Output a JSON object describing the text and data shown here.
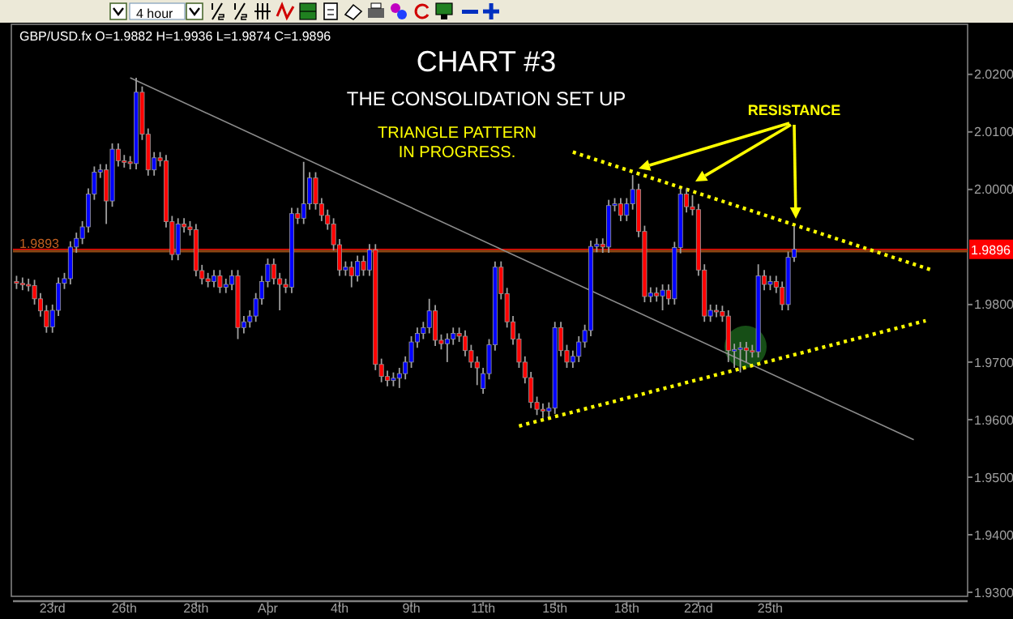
{
  "chart_data": {
    "type": "candlestick",
    "title": "CHART #3",
    "subtitle": "THE CONSOLIDATION SET UP",
    "annotations": [
      "GBP/USD.fx O=1.9882 H=1.9936 L=1.9874 C=1.9896",
      "TRIANGLE PATTERN\nIN PROGRESS.",
      "RESISTANCE",
      "4 hour"
    ],
    "categories": [
      null,
      null,
      null,
      null,
      null,
      null,
      "23rd",
      null,
      null,
      null,
      null,
      null,
      null,
      null,
      null,
      null,
      null,
      null,
      "26th",
      null,
      null,
      null,
      null,
      null,
      null,
      null,
      null,
      null,
      null,
      null,
      "28th",
      null,
      null,
      null,
      null,
      null,
      null,
      null,
      null,
      null,
      null,
      null,
      "Apr",
      null,
      null,
      null,
      null,
      null,
      null,
      null,
      null,
      null,
      null,
      null,
      "4th",
      null,
      null,
      null,
      null,
      null,
      null,
      null,
      null,
      null,
      null,
      null,
      "9th",
      null,
      null,
      null,
      null,
      null,
      null,
      null,
      null,
      null,
      null,
      null,
      "11th",
      null,
      null,
      null,
      null,
      null,
      null,
      null,
      null,
      null,
      null,
      null,
      "15th",
      null,
      null,
      null,
      null,
      null,
      null,
      null,
      null,
      null,
      null,
      null,
      "18th",
      null,
      null,
      null,
      null,
      null,
      null,
      null,
      null,
      null,
      null,
      null,
      "22nd",
      null,
      null,
      null,
      null,
      null,
      null,
      null,
      null,
      null,
      null,
      null,
      "25th",
      null,
      null,
      null,
      null,
      null,
      null,
      null,
      null,
      null,
      null,
      null,
      null,
      null,
      null,
      null,
      null,
      null,
      null,
      null,
      null,
      null,
      null,
      null,
      null,
      null,
      null,
      null,
      null,
      null,
      null,
      null,
      null,
      null
    ],
    "ohlc": [
      [
        1.984,
        1.985,
        1.9827,
        1.9837
      ],
      [
        1.9837,
        1.9847,
        1.9825,
        1.9835
      ],
      [
        1.9835,
        1.9845,
        1.9823,
        1.9833
      ],
      [
        1.9833,
        1.9843,
        1.98,
        1.981
      ],
      [
        1.981,
        1.982,
        1.9779,
        1.9789
      ],
      [
        1.9789,
        1.9799,
        1.9751,
        1.9761
      ],
      [
        1.9761,
        1.98,
        1.9751,
        1.979
      ],
      [
        1.979,
        1.9847,
        1.978,
        1.9837
      ],
      [
        1.9837,
        1.9855,
        1.9827,
        1.9845
      ],
      [
        1.9845,
        1.991,
        1.9835,
        1.99
      ],
      [
        1.99,
        1.9925,
        1.989,
        1.9915
      ],
      [
        1.9915,
        1.9945,
        1.9905,
        1.9935
      ],
      [
        1.9935,
        2.0002,
        1.9925,
        1.9992
      ],
      [
        1.9992,
        2.004,
        1.9982,
        2.003
      ],
      [
        2.003,
        2.0044,
        2.002,
        2.0034
      ],
      [
        2.0034,
        2.0044,
        1.994,
        1.998
      ],
      [
        1.998,
        2.008,
        1.997,
        2.007
      ],
      [
        2.007,
        2.008,
        2.004,
        2.005
      ],
      [
        2.005,
        2.006,
        2.0038,
        2.0048
      ],
      [
        2.0048,
        2.0058,
        2.0035,
        2.0045
      ],
      [
        2.0045,
        2.0194,
        2.0035,
        2.0169
      ],
      [
        2.0169,
        2.0179,
        2.0086,
        2.0096
      ],
      [
        2.0096,
        2.0106,
        2.0024,
        2.0034
      ],
      [
        2.0034,
        2.0065,
        2.0024,
        2.0055
      ],
      [
        2.0055,
        2.0065,
        2.004,
        2.005
      ],
      [
        2.005,
        2.006,
        1.9934,
        1.9944
      ],
      [
        1.9944,
        1.9954,
        1.9877,
        1.9887
      ],
      [
        1.9887,
        1.995,
        1.9877,
        1.994
      ],
      [
        1.994,
        1.995,
        1.9925,
        1.9935
      ],
      [
        1.9935,
        1.9945,
        1.992,
        1.993
      ],
      [
        1.993,
        1.994,
        1.9849,
        1.9859
      ],
      [
        1.9859,
        1.9869,
        1.9835,
        1.9845
      ],
      [
        1.9845,
        1.9855,
        1.983,
        1.984
      ],
      [
        1.984,
        1.986,
        1.983,
        1.985
      ],
      [
        1.985,
        1.986,
        1.982,
        1.983
      ],
      [
        1.983,
        1.9845,
        1.982,
        1.9835
      ],
      [
        1.9835,
        1.986,
        1.9825,
        1.985
      ],
      [
        1.985,
        1.986,
        1.974,
        1.976
      ],
      [
        1.976,
        1.978,
        1.975,
        1.977
      ],
      [
        1.977,
        1.979,
        1.976,
        1.978
      ],
      [
        1.978,
        1.982,
        1.977,
        1.981
      ],
      [
        1.981,
        1.985,
        1.98,
        1.984
      ],
      [
        1.984,
        1.988,
        1.983,
        1.987
      ],
      [
        1.987,
        1.988,
        1.9835,
        1.9845
      ],
      [
        1.9845,
        1.9855,
        1.979,
        1.9835
      ],
      [
        1.9835,
        1.9845,
        1.982,
        1.983
      ],
      [
        1.983,
        1.9968,
        1.982,
        1.9958
      ],
      [
        1.9958,
        1.9968,
        1.994,
        1.995
      ],
      [
        1.995,
        2.0048,
        1.994,
        1.9975
      ],
      [
        1.9975,
        2.003,
        1.9965,
        2.002
      ],
      [
        2.002,
        2.003,
        1.9965,
        1.9975
      ],
      [
        1.9975,
        1.9985,
        1.9945,
        1.9955
      ],
      [
        1.9955,
        1.9965,
        1.993,
        1.994
      ],
      [
        1.994,
        1.995,
        1.9894,
        1.9904
      ],
      [
        1.9904,
        1.9914,
        1.985,
        1.986
      ],
      [
        1.986,
        1.9875,
        1.985,
        1.9865
      ],
      [
        1.9865,
        1.9875,
        1.983,
        1.985
      ],
      [
        1.985,
        1.9885,
        1.984,
        1.9875
      ],
      [
        1.9875,
        1.9885,
        1.985,
        1.986
      ],
      [
        1.986,
        1.9905,
        1.985,
        1.9895
      ],
      [
        1.9895,
        1.9905,
        1.9686,
        1.9696
      ],
      [
        1.9696,
        1.9706,
        1.9665,
        1.9675
      ],
      [
        1.9675,
        1.9685,
        1.9658,
        1.9668
      ],
      [
        1.9668,
        1.9682,
        1.9658,
        1.9672
      ],
      [
        1.9672,
        1.969,
        1.9655,
        1.968
      ],
      [
        1.968,
        1.971,
        1.967,
        1.97
      ],
      [
        1.97,
        1.9745,
        1.969,
        1.9735
      ],
      [
        1.9735,
        1.976,
        1.9725,
        1.975
      ],
      [
        1.975,
        1.977,
        1.974,
        1.976
      ],
      [
        1.976,
        1.981,
        1.975,
        1.9789
      ],
      [
        1.9789,
        1.9799,
        1.9728,
        1.9738
      ],
      [
        1.9738,
        1.9748,
        1.9722,
        1.9732
      ],
      [
        1.9732,
        1.975,
        1.97,
        1.974
      ],
      [
        1.974,
        1.976,
        1.973,
        1.975
      ],
      [
        1.975,
        1.976,
        1.9735,
        1.9745
      ],
      [
        1.9745,
        1.9755,
        1.971,
        1.972
      ],
      [
        1.972,
        1.973,
        1.969,
        1.97
      ],
      [
        1.97,
        1.971,
        1.966,
        1.969
      ],
      [
        1.9654,
        1.969,
        1.9645,
        1.968
      ],
      [
        1.968,
        1.974,
        1.967,
        1.973
      ],
      [
        1.973,
        1.9875,
        1.972,
        1.9865
      ],
      [
        1.9865,
        1.9875,
        1.9809,
        1.9819
      ],
      [
        1.9819,
        1.9829,
        1.976,
        1.977
      ],
      [
        1.977,
        1.978,
        1.973,
        1.974
      ],
      [
        1.974,
        1.975,
        1.969,
        1.97
      ],
      [
        1.97,
        1.971,
        1.9663,
        1.9673
      ],
      [
        1.9673,
        1.9683,
        1.962,
        1.963
      ],
      [
        1.963,
        1.964,
        1.9608,
        1.9618
      ],
      [
        1.9618,
        1.9628,
        1.9603,
        1.9615
      ],
      [
        1.9615,
        1.963,
        1.9605,
        1.962
      ],
      [
        1.962,
        1.977,
        1.961,
        1.976
      ],
      [
        1.976,
        1.977,
        1.971,
        1.972
      ],
      [
        1.972,
        1.973,
        1.969,
        1.97
      ],
      [
        1.97,
        1.972,
        1.969,
        1.971
      ],
      [
        1.971,
        1.9745,
        1.97,
        1.9735
      ],
      [
        1.9735,
        1.9765,
        1.9725,
        1.9755
      ],
      [
        1.9755,
        1.9911,
        1.9745,
        1.9901
      ],
      [
        1.9901,
        1.9915,
        1.9891,
        1.9905
      ],
      [
        1.9905,
        1.9915,
        1.989,
        1.99
      ],
      [
        1.99,
        1.9982,
        1.989,
        1.9972
      ],
      [
        1.9972,
        1.9985,
        1.9962,
        1.9975
      ],
      [
        1.9975,
        1.9985,
        1.9945,
        1.9955
      ],
      [
        1.9955,
        1.9985,
        1.9945,
        1.9975
      ],
      [
        1.9975,
        2.0025,
        1.9965,
        2.0
      ],
      [
        2.0,
        2.001,
        1.9917,
        1.9927
      ],
      [
        1.9927,
        1.9937,
        1.9804,
        1.9814
      ],
      [
        1.9814,
        1.983,
        1.9804,
        1.982
      ],
      [
        1.982,
        1.983,
        1.9805,
        1.9815
      ],
      [
        1.9815,
        1.9835,
        1.979,
        1.9825
      ],
      [
        1.9825,
        1.9835,
        1.98,
        1.981
      ],
      [
        1.981,
        1.9909,
        1.98,
        1.9899
      ],
      [
        1.9899,
        2.0002,
        1.9889,
        1.9992
      ],
      [
        1.9992,
        2.0002,
        1.996,
        1.997
      ],
      [
        1.997,
        1.999,
        1.9955,
        1.9965
      ],
      [
        1.9965,
        1.9975,
        1.985,
        1.986
      ],
      [
        1.986,
        1.987,
        1.977,
        1.978
      ],
      [
        1.978,
        1.98,
        1.977,
        1.979
      ],
      [
        1.979,
        1.98,
        1.9778,
        1.9788
      ],
      [
        1.9788,
        1.9798,
        1.977,
        1.978
      ],
      [
        1.978,
        1.979,
        1.97,
        1.972
      ],
      [
        1.972,
        1.9732,
        1.969,
        1.9722
      ],
      [
        1.9722,
        1.9735,
        1.9682,
        1.9725
      ],
      [
        1.9725,
        1.9735,
        1.97,
        1.972
      ],
      [
        1.972,
        1.973,
        1.9708,
        1.9718
      ],
      [
        1.9718,
        1.987,
        1.9708,
        1.985
      ],
      [
        1.985,
        1.986,
        1.9825,
        1.9835
      ],
      [
        1.9835,
        1.985,
        1.9825,
        1.984
      ],
      [
        1.984,
        1.985,
        1.982,
        1.983
      ],
      [
        1.983,
        1.984,
        1.979,
        1.98
      ],
      [
        1.98,
        1.9892,
        1.979,
        1.9882
      ],
      [
        1.9882,
        1.9936,
        1.9874,
        1.9896
      ],
      null,
      null,
      null,
      null,
      null,
      null,
      null,
      null,
      null,
      null,
      null,
      null,
      null,
      null,
      null,
      null,
      null,
      null,
      null,
      null,
      null,
      null,
      null,
      null,
      null,
      null,
      null,
      null,
      null
    ],
    "series": [
      {
        "type": "line",
        "color": "#8c8c8c",
        "line_style": "solid",
        "values": [
          null,
          null,
          null,
          null,
          null,
          null,
          null,
          null,
          null,
          null,
          null,
          null,
          null,
          null,
          null,
          null,
          null,
          null,
          null,
          2.0194,
          null,
          null,
          null,
          null,
          null,
          null,
          null,
          null,
          null,
          null,
          null,
          null,
          null,
          null,
          null,
          null,
          null,
          null,
          null,
          null,
          null,
          null,
          null,
          null,
          null,
          null,
          null,
          null,
          null,
          null,
          null,
          null,
          null,
          null,
          null,
          null,
          null,
          null,
          null,
          null,
          null,
          null,
          null,
          null,
          null,
          null,
          null,
          null,
          null,
          null,
          null,
          null,
          null,
          null,
          null,
          null,
          null,
          null,
          null,
          null,
          null,
          null,
          null,
          null,
          null,
          null,
          null,
          null,
          null,
          null,
          null,
          null,
          null,
          null,
          null,
          null,
          null,
          null,
          null,
          null,
          null,
          null,
          null,
          null,
          null,
          null,
          null,
          null,
          null,
          null,
          null,
          null,
          null,
          null,
          null,
          null,
          null,
          null,
          null,
          null,
          null,
          null,
          null,
          null,
          null,
          null,
          null,
          null,
          null,
          null,
          null,
          null,
          null,
          null,
          null,
          null,
          null,
          null,
          null,
          null,
          null,
          null,
          null,
          null,
          null,
          null,
          null,
          null,
          null,
          null,
          1.9565,
          null,
          null,
          null,
          null,
          null,
          null,
          null,
          null,
          null
        ]
      },
      {
        "type": "line",
        "color": "#ffff00",
        "line_style": "dotted",
        "values": [
          null,
          null,
          null,
          null,
          null,
          null,
          null,
          null,
          null,
          null,
          null,
          null,
          null,
          null,
          null,
          null,
          null,
          null,
          null,
          null,
          null,
          null,
          null,
          null,
          null,
          null,
          null,
          null,
          null,
          null,
          null,
          null,
          null,
          null,
          null,
          null,
          null,
          null,
          null,
          null,
          null,
          null,
          null,
          null,
          null,
          null,
          null,
          null,
          null,
          null,
          null,
          null,
          null,
          null,
          null,
          null,
          null,
          null,
          null,
          null,
          null,
          null,
          null,
          null,
          null,
          null,
          null,
          null,
          null,
          null,
          null,
          null,
          null,
          null,
          null,
          null,
          null,
          null,
          null,
          null,
          null,
          null,
          null,
          null,
          null,
          null,
          null,
          null,
          null,
          null,
          null,
          null,
          null,
          2.0065,
          null,
          null,
          null,
          null,
          null,
          null,
          null,
          null,
          null,
          null,
          null,
          null,
          null,
          null,
          null,
          null,
          null,
          null,
          null,
          null,
          null,
          null,
          null,
          null,
          null,
          null,
          null,
          null,
          null,
          null,
          null,
          null,
          null,
          null,
          null,
          null,
          null,
          null,
          null,
          null,
          null,
          null,
          null,
          null,
          null,
          null,
          null,
          null,
          null,
          null,
          null,
          null,
          null,
          null,
          null,
          null,
          null,
          null,
          null,
          1.986,
          null,
          null,
          null,
          null,
          null,
          null
        ]
      },
      {
        "type": "line",
        "color": "#ffff00",
        "line_style": "dotted",
        "values": [
          null,
          null,
          null,
          null,
          null,
          null,
          null,
          null,
          null,
          null,
          null,
          null,
          null,
          null,
          null,
          null,
          null,
          null,
          null,
          null,
          null,
          null,
          null,
          null,
          null,
          null,
          null,
          null,
          null,
          null,
          null,
          null,
          null,
          null,
          null,
          null,
          null,
          null,
          null,
          null,
          null,
          null,
          null,
          null,
          null,
          null,
          null,
          null,
          null,
          null,
          null,
          null,
          null,
          null,
          null,
          null,
          null,
          null,
          null,
          null,
          null,
          null,
          null,
          null,
          null,
          null,
          null,
          null,
          null,
          null,
          null,
          null,
          null,
          null,
          null,
          null,
          null,
          null,
          null,
          null,
          null,
          null,
          null,
          null,
          1.9589,
          null,
          null,
          null,
          null,
          null,
          null,
          null,
          null,
          null,
          null,
          null,
          null,
          null,
          null,
          null,
          null,
          null,
          null,
          null,
          null,
          null,
          null,
          null,
          null,
          null,
          null,
          null,
          null,
          null,
          null,
          null,
          null,
          null,
          null,
          null,
          null,
          null,
          null,
          null,
          null,
          null,
          null,
          null,
          null,
          null,
          null,
          null,
          null,
          null,
          null,
          null,
          null,
          null,
          null,
          null,
          null,
          null,
          null,
          null,
          null,
          null,
          null,
          null,
          null,
          null,
          null,
          null,
          1.9772,
          null,
          null,
          null,
          null,
          null,
          null,
          null
        ]
      }
    ],
    "ref_lines": [
      {
        "axis": "y",
        "value": 1.9893,
        "label": "1.9893",
        "color": "#8b4513"
      },
      {
        "axis": "y",
        "value": 1.9896,
        "label": "1.9896",
        "color": "#ff0000"
      }
    ],
    "ylim": [
      1.9293,
      2.0287
    ],
    "yticks": [
      {
        "value": 1.93,
        "label": "1.9300"
      },
      {
        "value": 1.94,
        "label": "1.9400"
      },
      {
        "value": 1.95,
        "label": "1.9500"
      },
      {
        "value": 1.96,
        "label": "1.9600"
      },
      {
        "value": 1.97,
        "label": "1.9700"
      },
      {
        "value": 1.98,
        "label": "1.9800"
      },
      {
        "value": 2.0,
        "label": "2.0000"
      },
      {
        "value": 2.01,
        "label": "2.0100"
      },
      {
        "value": 2.02,
        "label": "2.0200"
      }
    ],
    "grid": false
  }
}
